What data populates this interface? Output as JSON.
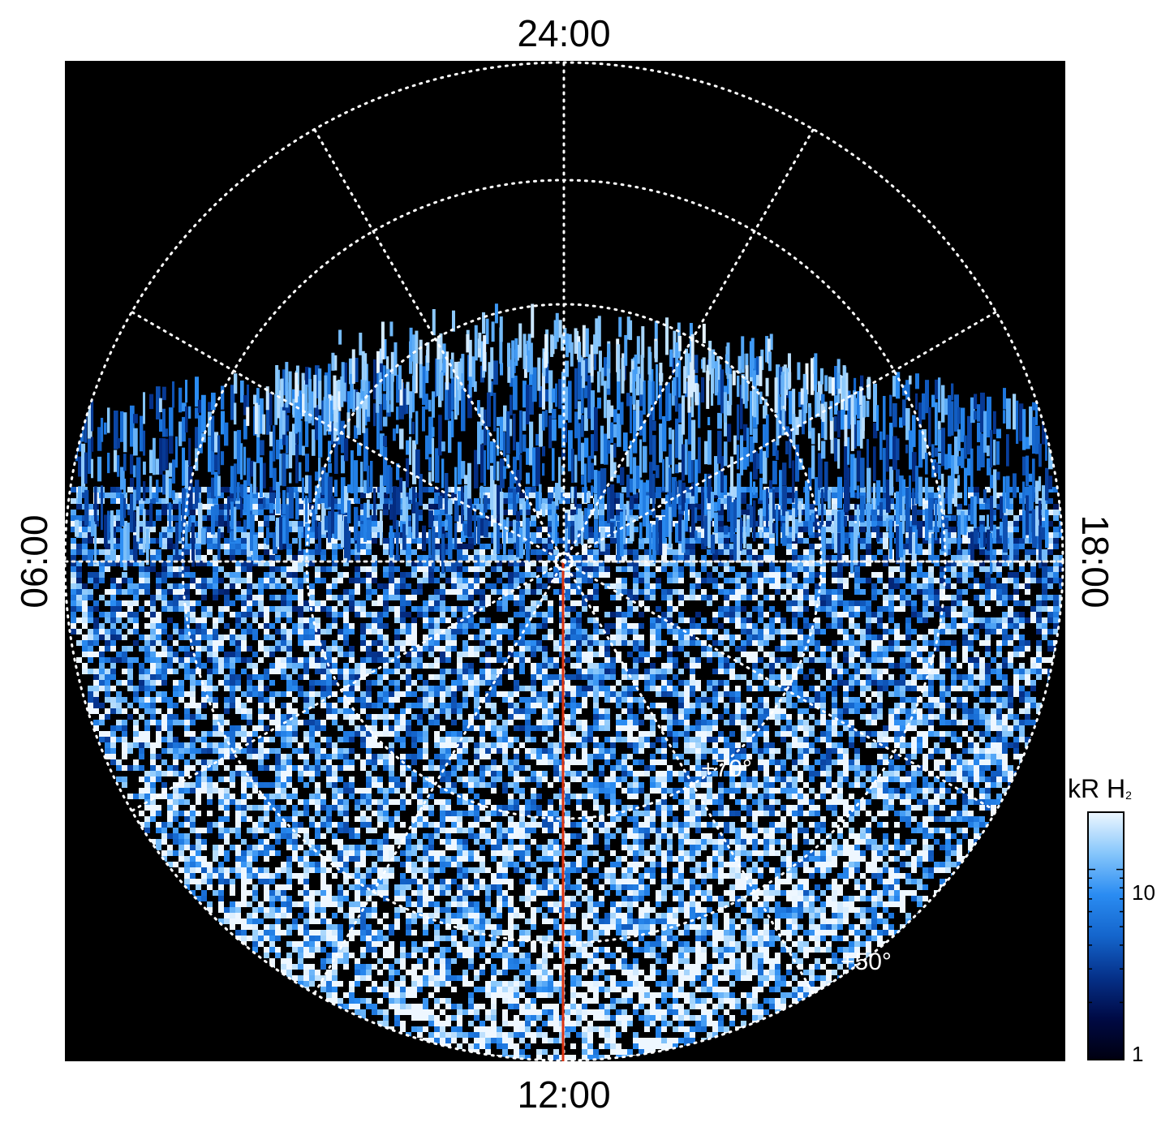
{
  "chart_data": {
    "type": "heatmap",
    "projection": "polar",
    "local_time_labels": {
      "top": "24:00",
      "bottom": "12:00",
      "left": "06:00",
      "right": "18:00"
    },
    "latitude_labels": [
      "+70°",
      "+50°"
    ],
    "colorbar": {
      "title": "kR H",
      "title_subscript": "2",
      "scale": "log",
      "range": [
        1,
        20
      ],
      "ticks": [
        {
          "value": 1,
          "label": "1"
        },
        {
          "value": 10,
          "label": "10"
        }
      ],
      "colors": [
        "#000010",
        "#000a45",
        "#05318a",
        "#1465cc",
        "#2a8cf2",
        "#86c6fb",
        "#eef7ff"
      ]
    },
    "grid": true,
    "background_color": "#000000",
    "grid_color": "#ffffff",
    "meridian_line_color": "#dd3311"
  }
}
